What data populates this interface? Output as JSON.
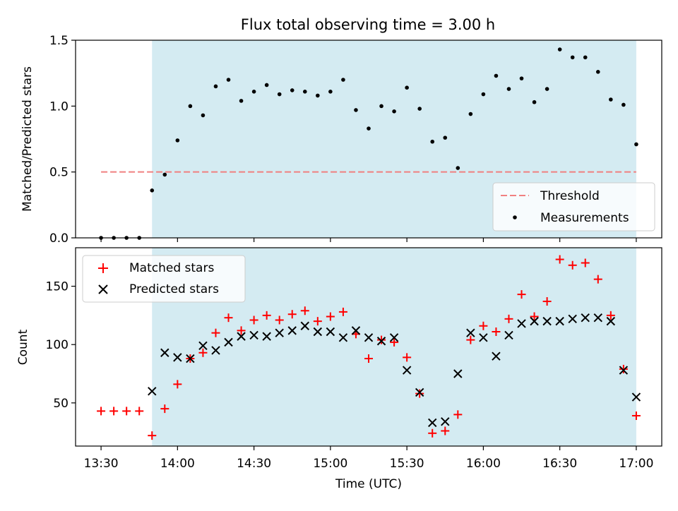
{
  "title": "Flux total observing time = 3.00 h",
  "shade_color": "#d4ebf2",
  "chart_data": [
    {
      "type": "scatter",
      "ylabel": "Matched/Predicted stars",
      "ylim": [
        0,
        1.5
      ],
      "yticks": [
        0.0,
        0.5,
        1.0,
        1.5
      ],
      "ytick_labels": [
        "0.0",
        "0.5",
        "1.0",
        "1.5"
      ],
      "shaded_region_minutes": [
        830,
        1020
      ],
      "threshold": {
        "name": "Threshold",
        "value": 0.5,
        "x_range": [
          810,
          1020
        ],
        "color": "#f08080",
        "style": "dashed"
      },
      "legend": {
        "position": "lower-right",
        "entries": [
          "Threshold",
          "Measurements"
        ]
      },
      "series": [
        {
          "name": "Measurements",
          "color": "#000000",
          "marker": "dot",
          "x": [
            810,
            815,
            820,
            825,
            830,
            835,
            840,
            845,
            850,
            855,
            860,
            865,
            870,
            875,
            880,
            885,
            890,
            895,
            900,
            905,
            910,
            915,
            920,
            925,
            930,
            935,
            940,
            945,
            950,
            955,
            960,
            965,
            970,
            975,
            980,
            985,
            990,
            995,
            1000,
            1005,
            1010,
            1015,
            1020
          ],
          "y": [
            0.0,
            0.0,
            0.0,
            0.0,
            0.36,
            0.48,
            0.74,
            1.0,
            0.93,
            1.15,
            1.2,
            1.04,
            1.11,
            1.16,
            1.09,
            1.12,
            1.11,
            1.08,
            1.11,
            1.2,
            0.97,
            0.83,
            1.0,
            0.96,
            1.14,
            0.98,
            0.73,
            0.76,
            0.53,
            0.94,
            1.09,
            1.23,
            1.13,
            1.21,
            1.03,
            1.13,
            1.43,
            1.37,
            1.37,
            1.26,
            1.05,
            1.01,
            0.71
          ]
        }
      ]
    },
    {
      "type": "scatter",
      "xlabel": "Time (UTC)",
      "ylabel": "Count",
      "ylim": [
        13,
        183
      ],
      "yticks": [
        50,
        100,
        150
      ],
      "ytick_labels": [
        "50",
        "100",
        "150"
      ],
      "xlim": [
        800,
        1030
      ],
      "xticks": [
        810,
        840,
        870,
        900,
        930,
        960,
        990,
        1020
      ],
      "xtick_labels": [
        "13:30",
        "14:00",
        "14:30",
        "15:00",
        "15:30",
        "16:00",
        "16:30",
        "17:00"
      ],
      "shaded_region_minutes": [
        830,
        1020
      ],
      "legend": {
        "position": "top-left",
        "entries": [
          "Matched stars",
          "Predicted stars"
        ]
      },
      "series": [
        {
          "name": "Matched stars",
          "color": "#ff0000",
          "marker": "plus",
          "x": [
            810,
            815,
            820,
            825,
            830,
            835,
            840,
            845,
            850,
            855,
            860,
            865,
            870,
            875,
            880,
            885,
            890,
            895,
            900,
            905,
            910,
            915,
            920,
            925,
            930,
            935,
            940,
            945,
            950,
            955,
            960,
            965,
            970,
            975,
            980,
            985,
            990,
            995,
            1000,
            1005,
            1010,
            1015,
            1020
          ],
          "y": [
            43,
            43,
            43,
            43,
            22,
            45,
            66,
            88,
            93,
            110,
            123,
            112,
            121,
            125,
            121,
            126,
            129,
            120,
            124,
            128,
            109,
            88,
            104,
            102,
            89,
            58,
            24,
            26,
            40,
            104,
            116,
            111,
            122,
            143,
            124,
            137,
            173,
            168,
            170,
            156,
            125,
            79,
            39
          ]
        },
        {
          "name": "Predicted stars",
          "color": "#000000",
          "marker": "x",
          "x": [
            830,
            835,
            840,
            845,
            850,
            855,
            860,
            865,
            870,
            875,
            880,
            885,
            890,
            895,
            900,
            905,
            910,
            915,
            920,
            925,
            930,
            935,
            940,
            945,
            950,
            955,
            960,
            965,
            970,
            975,
            980,
            985,
            990,
            995,
            1000,
            1005,
            1010,
            1015,
            1020
          ],
          "y": [
            60,
            93,
            89,
            88,
            99,
            95,
            102,
            107,
            108,
            107,
            110,
            112,
            116,
            111,
            111,
            106,
            112,
            106,
            103,
            106,
            78,
            59,
            33,
            34,
            75,
            110,
            106,
            90,
            108,
            118,
            120,
            120,
            120,
            122,
            123,
            123,
            120,
            78,
            55
          ]
        }
      ]
    }
  ]
}
